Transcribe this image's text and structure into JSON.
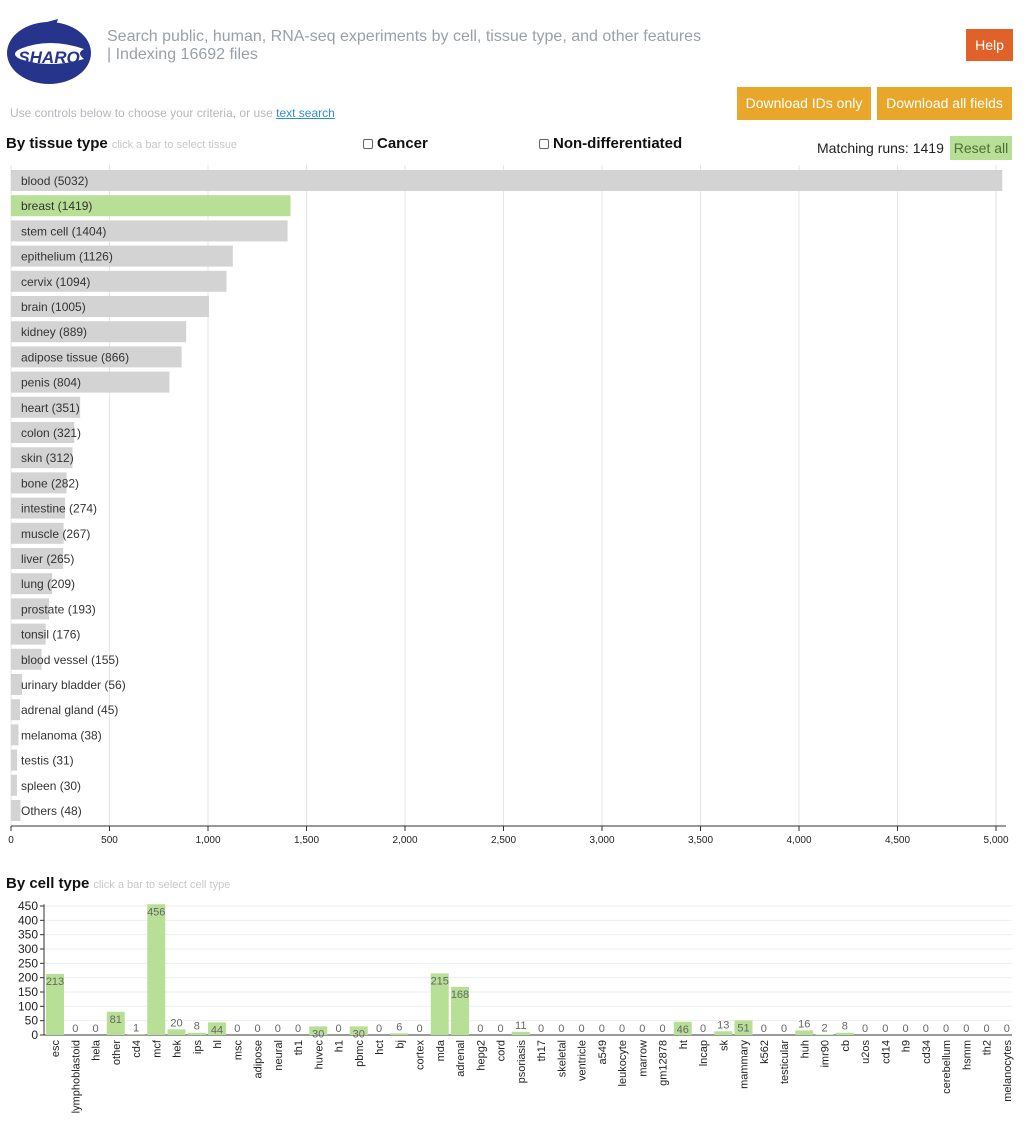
{
  "header": {
    "tagline": "Search public, human, RNA-seq experiments by cell, tissue type, and other features | Indexing 16692 files",
    "help_label": "Help",
    "hint_text": "Use controls below to choose your criteria, or use ",
    "hint_link": "text search",
    "download_ids_label": "Download IDs only",
    "download_all_label": "Download all fields",
    "logo_text": "SHARQ",
    "colors": {
      "help": "#e0622a",
      "download": "#e8a72a",
      "selected_bar": "#b7df95",
      "bar": "#d3d3d3",
      "logo": "#27348b"
    }
  },
  "tissue_section": {
    "title": "By tissue type",
    "subtitle": "click a bar to select tissue",
    "cancer_label": "Cancer",
    "nondiff_label": "Non-differentiated",
    "matching_text": "Matching runs: 1419",
    "reset_label": "Reset all"
  },
  "cell_section": {
    "title": "By cell type",
    "subtitle": "click a bar to select cell type"
  },
  "chart_data": [
    {
      "type": "bar",
      "orientation": "horizontal",
      "categories": [
        "blood",
        "breast",
        "stem cell",
        "epithelium",
        "cervix",
        "brain",
        "kidney",
        "adipose tissue",
        "penis",
        "heart",
        "colon",
        "skin",
        "bone",
        "intestine",
        "muscle",
        "liver",
        "lung",
        "prostate",
        "tonsil",
        "blood vessel",
        "urinary bladder",
        "adrenal gland",
        "melanoma",
        "testis",
        "spleen",
        "Others"
      ],
      "values": [
        5032,
        1419,
        1404,
        1126,
        1094,
        1005,
        889,
        866,
        804,
        351,
        321,
        312,
        282,
        274,
        267,
        265,
        209,
        193,
        176,
        155,
        56,
        45,
        38,
        31,
        30,
        48
      ],
      "selected": "breast",
      "xlim": [
        0,
        5000
      ],
      "xticks": [
        "0",
        "500",
        "1,000",
        "1,500",
        "2,000",
        "2,500",
        "3,000",
        "3,500",
        "4,000",
        "4,500",
        "5,000"
      ],
      "grid": true
    },
    {
      "type": "bar",
      "orientation": "vertical",
      "categories": [
        "esc",
        "lymphoblastoid",
        "hela",
        "other",
        "cd4",
        "mcf",
        "hek",
        "ips",
        "hl",
        "msc",
        "adipose",
        "neural",
        "th1",
        "huvec",
        "h1",
        "pbmc",
        "hct",
        "bj",
        "cortex",
        "mda",
        "adrenal",
        "hepg2",
        "cord",
        "psoriasis",
        "th17",
        "skeletal",
        "ventricle",
        "a549",
        "leukocyte",
        "marrow",
        "gm12878",
        "ht",
        "lncap",
        "sk",
        "mammary",
        "k562",
        "testicular",
        "huh",
        "imr90",
        "cb",
        "u2os",
        "cd14",
        "h9",
        "cd34",
        "cerebellum",
        "hsmm",
        "th2",
        "melanocytes"
      ],
      "values": [
        213,
        0,
        0,
        81,
        1,
        456,
        20,
        8,
        44,
        0,
        0,
        0,
        0,
        30,
        0,
        30,
        0,
        6,
        0,
        215,
        168,
        0,
        0,
        11,
        0,
        0,
        0,
        0,
        0,
        0,
        0,
        46,
        0,
        13,
        51,
        0,
        0,
        16,
        2,
        8,
        0,
        0,
        0,
        0,
        0,
        0,
        0,
        0
      ],
      "ylim": [
        0,
        456
      ],
      "yticks": [
        "0",
        "50",
        "100",
        "150",
        "200",
        "250",
        "300",
        "350",
        "400",
        "450"
      ],
      "grid": true
    }
  ]
}
